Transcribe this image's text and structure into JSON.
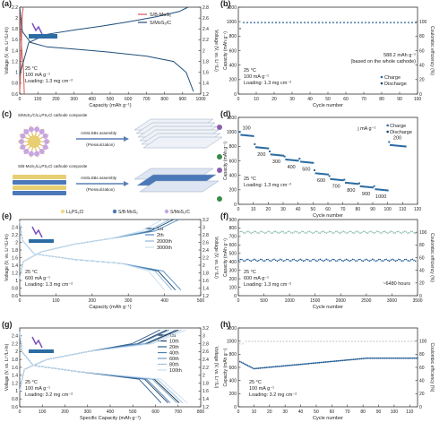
{
  "chart_data": [
    {
      "panel": "(a)",
      "type": "line",
      "xlabel": "Capacity (mAh g⁻¹)",
      "ylabel": "Voltage (V, vs. Li⁺/Li-In)",
      "y2label": "Voltage (V, vs. Li⁺/Li)",
      "xticks": [
        0,
        100,
        200,
        300,
        400,
        500,
        600,
        700,
        800,
        900,
        1000
      ],
      "yticks": [
        0.6,
        0.8,
        1.0,
        1.2,
        1.4,
        1.6,
        1.8,
        2.0,
        2.2
      ],
      "y2ticks": [
        1.2,
        1.4,
        1.6,
        1.8,
        2.0,
        2.2,
        2.4,
        2.6,
        2.8
      ],
      "xlim": [
        0,
        1000
      ],
      "ylim": [
        0.6,
        2.2
      ],
      "y2lim": [
        1.2,
        2.8
      ],
      "annotation": [
        "25 °C",
        "100 mA g⁻¹",
        "Loading: 1.3 mg cm⁻²"
      ],
      "series": [
        {
          "name": "S/B-MoS₂",
          "color": "#d9534f",
          "charge": [
            [
              0,
              0.65
            ],
            [
              5,
              1.0
            ],
            [
              10,
              1.6
            ],
            [
              15,
              2.1
            ],
            [
              20,
              2.2
            ]
          ],
          "discharge": [
            [
              0,
              2.2
            ],
            [
              6,
              1.7
            ],
            [
              12,
              1.4
            ],
            [
              18,
              1.2
            ],
            [
              22,
              1.0
            ],
            [
              25,
              0.6
            ]
          ]
        },
        {
          "name": "S/MoS₂/C",
          "color": "#1f4e79",
          "charge": [
            [
              0,
              0.95
            ],
            [
              50,
              1.55
            ],
            [
              150,
              1.7
            ],
            [
              300,
              1.78
            ],
            [
              450,
              1.85
            ],
            [
              600,
              1.93
            ],
            [
              750,
              2.02
            ],
            [
              880,
              2.12
            ],
            [
              930,
              2.2
            ]
          ],
          "discharge": [
            [
              0,
              2.2
            ],
            [
              15,
              1.75
            ],
            [
              60,
              1.55
            ],
            [
              150,
              1.47
            ],
            [
              300,
              1.43
            ],
            [
              500,
              1.37
            ],
            [
              700,
              1.3
            ],
            [
              850,
              1.2
            ],
            [
              920,
              1.0
            ],
            [
              960,
              0.65
            ]
          ]
        }
      ]
    },
    {
      "panel": "(b)",
      "type": "scatter",
      "xlabel": "Cycle number",
      "ylabel": "Capacity (mAh g⁻¹)",
      "y2label": "Coulombic efficiency (%)",
      "xticks": [
        0,
        10,
        20,
        30,
        40,
        50,
        60,
        70,
        80,
        90,
        100
      ],
      "yticks": [
        0,
        200,
        400,
        600,
        800,
        1000,
        1200
      ],
      "y2ticks": [
        0,
        20,
        40,
        60,
        80,
        100
      ],
      "xlim": [
        0,
        100
      ],
      "ylim": [
        0,
        1200
      ],
      "y2lim": [
        0,
        120
      ],
      "annotation": [
        "25 °C",
        "100 mA g⁻¹",
        "Loading: 1.3 mg cm⁻²"
      ],
      "callout": [
        "588.2 mAh g⁻¹",
        "(based on the whole cathode)"
      ],
      "series": [
        {
          "name": "Charge",
          "marker": "circle",
          "color": "#2b6ca3",
          "value": 985
        },
        {
          "name": "Discharge",
          "marker": "dot",
          "color": "#16456f",
          "value": 980
        },
        {
          "name": "CE",
          "marker": "x",
          "color": "#b9b9b9",
          "value": 100
        }
      ]
    },
    {
      "panel": "(c)",
      "type": "diagram",
      "labels": [
        "S/MoS₂/C/Li₆PS₅Cl cathode composite",
        "ASSLSBs assembly",
        "(Pressurization)",
        "S/B-MoS₂/Li₆PS₅Cl cathode composite",
        "ASSLSBs assembly",
        "(Pressurization)"
      ],
      "legend": [
        "Li₆PS₅Cl",
        "S/B-MoS₂",
        "S/MoS₂/C"
      ]
    },
    {
      "panel": "(d)",
      "type": "scatter",
      "xlabel": "Cycle number",
      "ylabel": "Capacity (mAh g⁻¹)",
      "xticks": [
        0,
        10,
        20,
        30,
        40,
        50,
        60,
        70,
        80,
        90,
        100,
        110,
        120
      ],
      "yticks": [
        0,
        200,
        400,
        600,
        800,
        1000,
        1200
      ],
      "xlim": [
        0,
        120
      ],
      "ylim": [
        0,
        1200
      ],
      "annotation": [
        "25 °C",
        "Loading: 1.3 mg cm⁻²"
      ],
      "unit_label": "j mA g⁻¹",
      "rates": [
        {
          "label": "100",
          "from": 1,
          "to": 10,
          "value": 960
        },
        {
          "label": "200",
          "from": 11,
          "to": 20,
          "value": 790
        },
        {
          "label": "300",
          "from": 21,
          "to": 30,
          "value": 690
        },
        {
          "label": "400",
          "from": 31,
          "to": 40,
          "value": 620
        },
        {
          "label": "500",
          "from": 41,
          "to": 50,
          "value": 590
        },
        {
          "label": "600",
          "from": 51,
          "to": 60,
          "value": 430
        },
        {
          "label": "700",
          "from": 61,
          "to": 70,
          "value": 350
        },
        {
          "label": "800",
          "from": 71,
          "to": 80,
          "value": 300
        },
        {
          "label": "900",
          "from": 81,
          "to": 90,
          "value": 250
        },
        {
          "label": "1000",
          "from": 91,
          "to": 100,
          "value": 210
        },
        {
          "label": "200",
          "from": 101,
          "to": 112,
          "value": 820
        }
      ],
      "series": [
        {
          "name": "Charge",
          "color": "#2b6ca3"
        },
        {
          "name": "Discharge",
          "color": "#16456f"
        }
      ]
    },
    {
      "panel": "(e)",
      "type": "line",
      "xlabel": "Capacity (mAh g⁻¹)",
      "ylabel": "Voltage (V, vs. Li⁺/Li-In)",
      "y2label": "Voltage (V, vs. Li⁺/Li)",
      "xticks": [
        0,
        100,
        200,
        300,
        400,
        500
      ],
      "yticks": [
        0.6,
        0.8,
        1.0,
        1.2,
        1.4,
        1.6,
        1.8,
        2.0,
        2.2,
        2.4
      ],
      "y2ticks": [
        1.2,
        1.4,
        1.6,
        1.8,
        2.0,
        2.2,
        2.4,
        2.6,
        2.8,
        3.0,
        3.2
      ],
      "xlim": [
        0,
        500
      ],
      "ylim": [
        0.6,
        2.6
      ],
      "annotation": [
        "25 °C",
        "600 mA g⁻¹",
        "Loading: 1.3 mg cm⁻²"
      ],
      "series": [
        {
          "name": "1st",
          "color": "#16456f",
          "cap": 425
        },
        {
          "name": "2th",
          "color": "#4f8cc0",
          "cap": 440
        },
        {
          "name": "2000th",
          "color": "#8db8dc",
          "cap": 415
        },
        {
          "name": "3000th",
          "color": "#c9dff0",
          "cap": 395
        }
      ]
    },
    {
      "panel": "(f)",
      "type": "scatter",
      "xlabel": "Cycle number",
      "ylabel": "Capacity (mAh g⁻¹)",
      "y2label": "Coulombic efficiency (%)",
      "xticks": [
        0,
        500,
        1000,
        1500,
        2000,
        2500,
        3000,
        3500
      ],
      "yticks": [
        0,
        100,
        200,
        300,
        400,
        500,
        600,
        700,
        800,
        900
      ],
      "y2ticks": [
        0,
        20,
        40,
        60,
        80,
        100
      ],
      "xlim": [
        0,
        3500
      ],
      "ylim": [
        0,
        900
      ],
      "y2lim": [
        0,
        120
      ],
      "annotation": [
        "25 °C",
        "600 mA g⁻¹",
        "Loading: 1.3 mg cm⁻²"
      ],
      "callout": [
        "~6480 hours"
      ],
      "series": [
        {
          "name": "Capacity",
          "color": "#1f5a92",
          "value": 420
        },
        {
          "name": "CE",
          "color": "#8fbfb0",
          "value": 100
        }
      ]
    },
    {
      "panel": "(g)",
      "type": "line",
      "xlabel": "Specific Capacity (mAh g⁻¹)",
      "ylabel": "Voltage (V, vs. Li⁺/Li-In)",
      "y2label": "Voltage (V, vs. Li⁺/Li)",
      "xticks": [
        0,
        100,
        200,
        300,
        400,
        500,
        600,
        700,
        800
      ],
      "yticks": [
        0.6,
        0.8,
        1.0,
        1.2,
        1.4,
        1.6,
        1.8,
        2.0,
        2.2,
        2.4
      ],
      "y2ticks": [
        1.2,
        1.4,
        1.6,
        1.8,
        2.0,
        2.2,
        2.4,
        2.6,
        2.8,
        3.0,
        3.2
      ],
      "xlim": [
        0,
        800
      ],
      "ylim": [
        0.6,
        2.6
      ],
      "annotation": [
        "25 °C",
        "100 mA g⁻¹",
        "Loading: 3.2 mg cm⁻²"
      ],
      "series": [
        {
          "name": "1st",
          "color": "#0c1f33",
          "cap": 700
        },
        {
          "name": "10th",
          "color": "#1f3f66",
          "cap": 650
        },
        {
          "name": "20th",
          "color": "#2d5b8c",
          "cap": 620
        },
        {
          "name": "40th",
          "color": "#4a7fb3",
          "cap": 660
        },
        {
          "name": "60th",
          "color": "#6e9fcb",
          "cap": 690
        },
        {
          "name": "80th",
          "color": "#9dc0e0",
          "cap": 715
        },
        {
          "name": "100th",
          "color": "#c9def0",
          "cap": 735
        }
      ]
    },
    {
      "panel": "(h)",
      "type": "scatter",
      "xlabel": "Cycle number",
      "ylabel": "Capacity (mAh g⁻¹)",
      "y2label": "Coulombic efficiency (%)",
      "xticks": [
        0,
        10,
        20,
        30,
        40,
        50,
        60,
        70,
        80,
        90,
        100,
        110
      ],
      "yticks": [
        0,
        200,
        400,
        600,
        800,
        1000,
        1200
      ],
      "y2ticks": [
        0,
        20,
        40,
        60,
        80,
        100
      ],
      "xlim": [
        0,
        115
      ],
      "ylim": [
        0,
        1200
      ],
      "y2lim": [
        0,
        120
      ],
      "annotation": [
        "25 °C",
        "100 mA g⁻¹",
        "Loading: 3.2 mg cm⁻²"
      ],
      "series": [
        {
          "name": "Capacity",
          "color": "#1f5a92"
        },
        {
          "name": "CE",
          "color": "#b9b9b9",
          "value": 100
        }
      ]
    }
  ]
}
